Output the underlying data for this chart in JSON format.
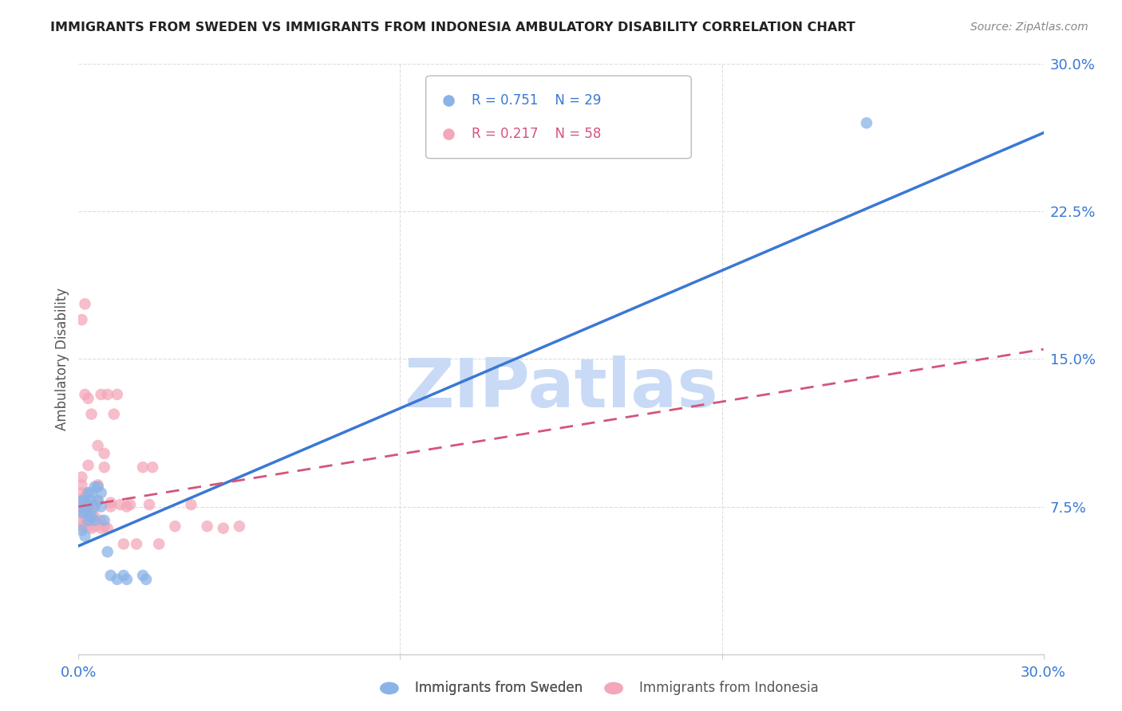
{
  "title": "IMMIGRANTS FROM SWEDEN VS IMMIGRANTS FROM INDONESIA AMBULATORY DISABILITY CORRELATION CHART",
  "source": "Source: ZipAtlas.com",
  "ylabel": "Ambulatory Disability",
  "xmin": 0.0,
  "xmax": 0.3,
  "ymin": 0.0,
  "ymax": 0.3,
  "yticks": [
    0.0,
    0.075,
    0.15,
    0.225,
    0.3
  ],
  "ytick_labels": [
    "",
    "7.5%",
    "15.0%",
    "22.5%",
    "30.0%"
  ],
  "xticks": [
    0.0,
    0.1,
    0.2,
    0.3
  ],
  "xtick_labels": [
    "0.0%",
    "",
    "",
    "30.0%"
  ],
  "sweden_R": 0.751,
  "sweden_N": 29,
  "indonesia_R": 0.217,
  "indonesia_N": 58,
  "sweden_color": "#8ab4e8",
  "indonesia_color": "#f4a7b9",
  "sweden_line_color": "#3a78d4",
  "indonesia_line_color": "#d4547a",
  "watermark": "ZIPatlas",
  "watermark_color": "#c8daf5",
  "sweden_line_x0": 0.0,
  "sweden_line_y0": 0.055,
  "sweden_line_x1": 0.3,
  "sweden_line_y1": 0.265,
  "indonesia_line_x0": 0.0,
  "indonesia_line_y0": 0.075,
  "indonesia_line_x1": 0.3,
  "indonesia_line_y1": 0.155,
  "sweden_x": [
    0.001,
    0.001,
    0.001,
    0.002,
    0.002,
    0.002,
    0.003,
    0.003,
    0.003,
    0.003,
    0.004,
    0.004,
    0.004,
    0.005,
    0.005,
    0.005,
    0.006,
    0.006,
    0.007,
    0.007,
    0.008,
    0.009,
    0.01,
    0.012,
    0.014,
    0.015,
    0.02,
    0.021,
    0.245
  ],
  "sweden_y": [
    0.063,
    0.072,
    0.078,
    0.06,
    0.073,
    0.078,
    0.068,
    0.072,
    0.076,
    0.082,
    0.07,
    0.078,
    0.082,
    0.068,
    0.075,
    0.085,
    0.078,
    0.085,
    0.075,
    0.082,
    0.068,
    0.052,
    0.04,
    0.038,
    0.04,
    0.038,
    0.04,
    0.038,
    0.27
  ],
  "indonesia_x": [
    0.001,
    0.001,
    0.001,
    0.001,
    0.001,
    0.001,
    0.001,
    0.001,
    0.001,
    0.002,
    0.002,
    0.002,
    0.002,
    0.002,
    0.002,
    0.003,
    0.003,
    0.003,
    0.003,
    0.003,
    0.004,
    0.004,
    0.004,
    0.004,
    0.005,
    0.005,
    0.005,
    0.006,
    0.006,
    0.006,
    0.007,
    0.007,
    0.007,
    0.008,
    0.008,
    0.008,
    0.009,
    0.009,
    0.01,
    0.01,
    0.011,
    0.012,
    0.013,
    0.014,
    0.015,
    0.016,
    0.018,
    0.02,
    0.022,
    0.023,
    0.025,
    0.03,
    0.035,
    0.04,
    0.045,
    0.05,
    0.003,
    0.002
  ],
  "indonesia_y": [
    0.065,
    0.068,
    0.072,
    0.075,
    0.078,
    0.082,
    0.086,
    0.09,
    0.17,
    0.065,
    0.068,
    0.072,
    0.075,
    0.08,
    0.178,
    0.065,
    0.07,
    0.075,
    0.082,
    0.096,
    0.064,
    0.068,
    0.072,
    0.122,
    0.065,
    0.07,
    0.076,
    0.078,
    0.086,
    0.106,
    0.064,
    0.068,
    0.132,
    0.095,
    0.102,
    0.065,
    0.064,
    0.132,
    0.075,
    0.077,
    0.122,
    0.132,
    0.076,
    0.056,
    0.075,
    0.076,
    0.056,
    0.095,
    0.076,
    0.095,
    0.056,
    0.065,
    0.076,
    0.065,
    0.064,
    0.065,
    0.13,
    0.132
  ]
}
